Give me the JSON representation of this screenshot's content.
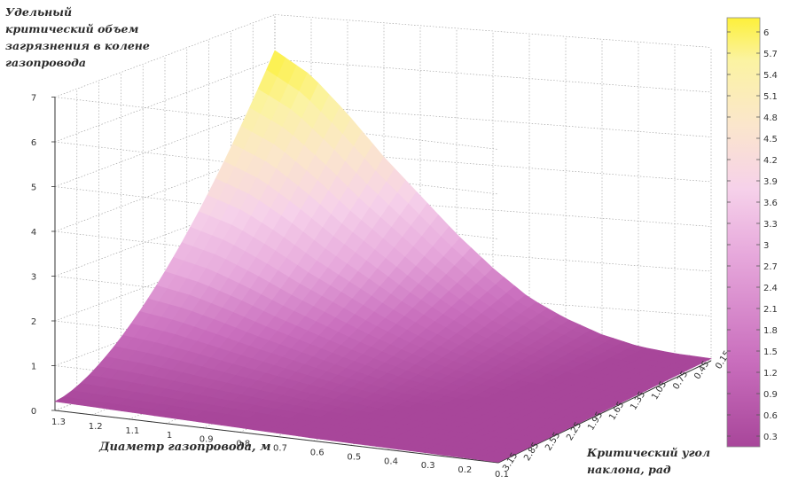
{
  "chart_data": {
    "type": "surface",
    "zlabel": "Удельный\nкритический объем\nзагрязнения в колене\nгазопровода",
    "xlabel": "Диаметр газопровода, м",
    "ylabel": "Критический угол\nнаклона, рад",
    "x_ticks": [
      "1.3",
      "1.2",
      "1.1",
      "1",
      "0.9",
      "0.8",
      "0.7",
      "0.6",
      "0.5",
      "0.4",
      "0.3",
      "0.2",
      "0.1"
    ],
    "y_ticks": [
      "3.15",
      "2.85",
      "2.55",
      "2.25",
      "1.95",
      "1.65",
      "1.35",
      "1.05",
      "0.75",
      "0.45",
      "0.15"
    ],
    "z_ticks": [
      "0",
      "1",
      "2",
      "3",
      "4",
      "5",
      "6",
      "7"
    ],
    "colorbar_ticks": [
      "6",
      "5.7",
      "5.4",
      "5.1",
      "4.8",
      "4.5",
      "4.2",
      "3.9",
      "3.6",
      "3.3",
      "3",
      "2.7",
      "2.4",
      "2.1",
      "1.8",
      "1.5",
      "1.2",
      "0.9",
      "0.6",
      "0.3"
    ],
    "colorbar_range": [
      0.15,
      6.2
    ],
    "colormap": [
      "#a8469a",
      "#c96ebd",
      "#e7a9dc",
      "#f6d1ea",
      "#fbe6cc",
      "#fbf3a2",
      "#fdf03a"
    ],
    "xlim": [
      0.1,
      1.3
    ],
    "ylim": [
      0.15,
      3.15
    ],
    "zlim": [
      0,
      7
    ],
    "grid": true,
    "surface_values": {
      "note_axis": "x",
      "x": [
        1.3,
        1.2,
        1.1,
        1.0,
        0.9,
        0.8,
        0.7,
        0.6,
        0.5,
        0.4,
        0.3,
        0.2,
        0.1
      ],
      "z_max_at_y_max": [
        6.2,
        5.7,
        4.9,
        4.0,
        3.2,
        2.4,
        1.7,
        1.1,
        0.7,
        0.4,
        0.2,
        0.1,
        0.05
      ],
      "z_min_at_y_min": [
        0.2,
        0.18,
        0.16,
        0.14,
        0.12,
        0.1,
        0.08,
        0.06,
        0.05,
        0.04,
        0.03,
        0.02,
        0.01
      ]
    }
  }
}
